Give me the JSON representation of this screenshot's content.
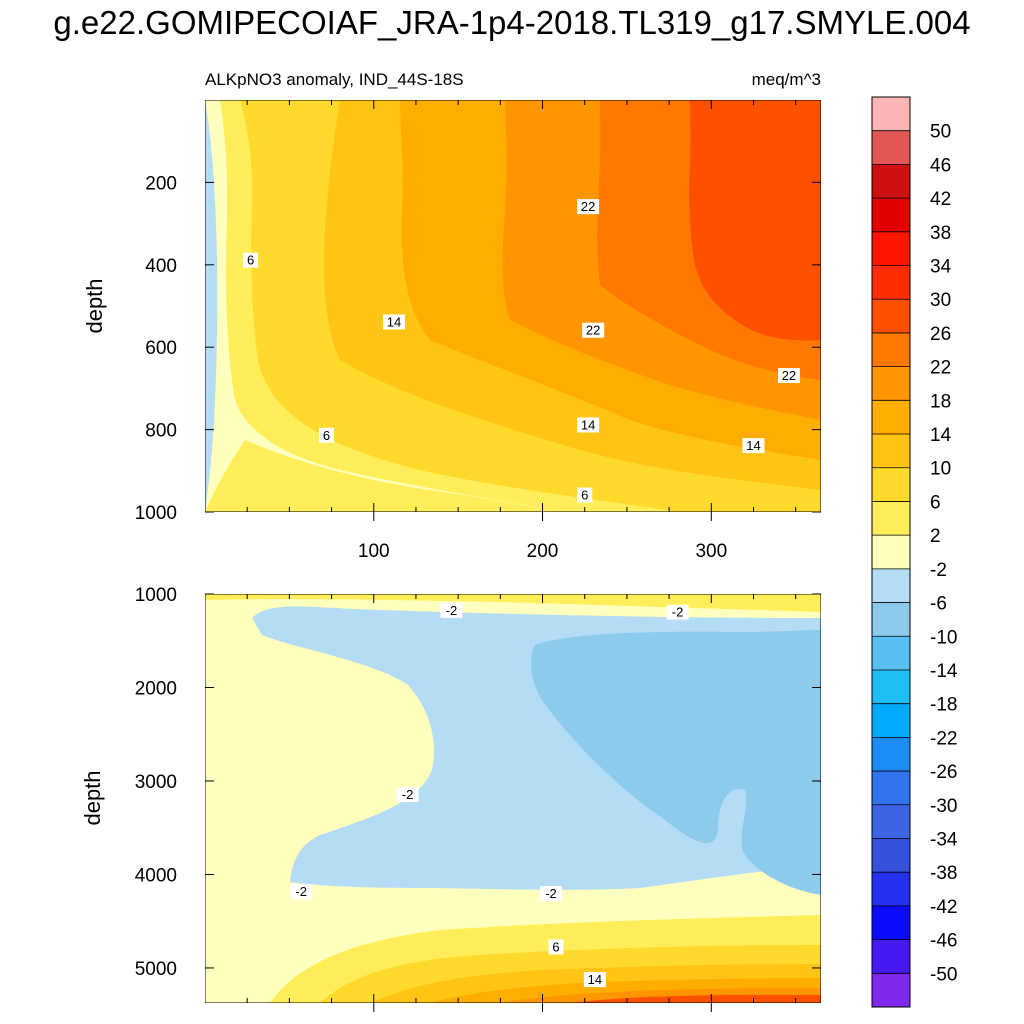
{
  "title": "g.e22.GOMIPECOIAF_JRA-1p4-2018.TL319_g17.SMYLE.004",
  "chart_data": [
    {
      "type": "heatmap",
      "panel": "upper",
      "left_subtitle": "ALKpNO3 anomaly, IND_44S-18S",
      "right_subtitle": "meq/m^3",
      "xlabel": "",
      "ylabel": "depth",
      "xlim": [
        0,
        365
      ],
      "ylim": [
        1000,
        0
      ],
      "x_ticks": [
        100,
        200,
        300
      ],
      "y_ticks": [
        200,
        400,
        600,
        800,
        1000
      ],
      "contour_labels": [
        {
          "text": "6",
          "x": 27,
          "y": 390
        },
        {
          "text": "14",
          "x": 112,
          "y": 540
        },
        {
          "text": "22",
          "x": 227,
          "y": 260
        },
        {
          "text": "22",
          "x": 230,
          "y": 560
        },
        {
          "text": "22",
          "x": 346,
          "y": 670
        },
        {
          "text": "6",
          "x": 72,
          "y": 815
        },
        {
          "text": "14",
          "x": 227,
          "y": 790
        },
        {
          "text": "14",
          "x": 325,
          "y": 840
        },
        {
          "text": "6",
          "x": 225,
          "y": 960
        }
      ]
    },
    {
      "type": "heatmap",
      "panel": "lower",
      "xlabel": "",
      "ylabel": "depth",
      "xlim": [
        0,
        365
      ],
      "ylim": [
        5375,
        1000
      ],
      "x_ticks": [
        100,
        200,
        300
      ],
      "y_ticks": [
        1000,
        2000,
        3000,
        4000,
        5000
      ],
      "contour_labels": [
        {
          "text": "-2",
          "x": 146,
          "y": 1180
        },
        {
          "text": "-2",
          "x": 280,
          "y": 1200
        },
        {
          "text": "-2",
          "x": 120,
          "y": 3150
        },
        {
          "text": "-2",
          "x": 57,
          "y": 4190
        },
        {
          "text": "-2",
          "x": 205,
          "y": 4210
        },
        {
          "text": "6",
          "x": 208,
          "y": 4780
        },
        {
          "text": "14",
          "x": 231,
          "y": 5130
        }
      ]
    }
  ],
  "colorbar": {
    "labels": [
      "50",
      "46",
      "42",
      "38",
      "34",
      "30",
      "26",
      "22",
      "18",
      "14",
      "10",
      "6",
      "2",
      "-2",
      "-6",
      "-10",
      "-14",
      "-18",
      "-22",
      "-26",
      "-30",
      "-34",
      "-38",
      "-42",
      "-46",
      "-50"
    ],
    "colors": [
      "#fdb4b4",
      "#e25656",
      "#cd1111",
      "#e00000",
      "#ff1400",
      "#ff2c00",
      "#ff5000",
      "#ff7800",
      "#ff9600",
      "#ffae00",
      "#ffc414",
      "#ffd92c",
      "#ffee5a",
      "#ffffbe",
      "#b4dcf5",
      "#8ccbec",
      "#58c0f0",
      "#1ebef7",
      "#00a9fa",
      "#1e8cf6",
      "#3273ee",
      "#3c64e3",
      "#3550da",
      "#2432f0",
      "#0a0aff",
      "#4619f0",
      "#7d28eb"
    ]
  }
}
